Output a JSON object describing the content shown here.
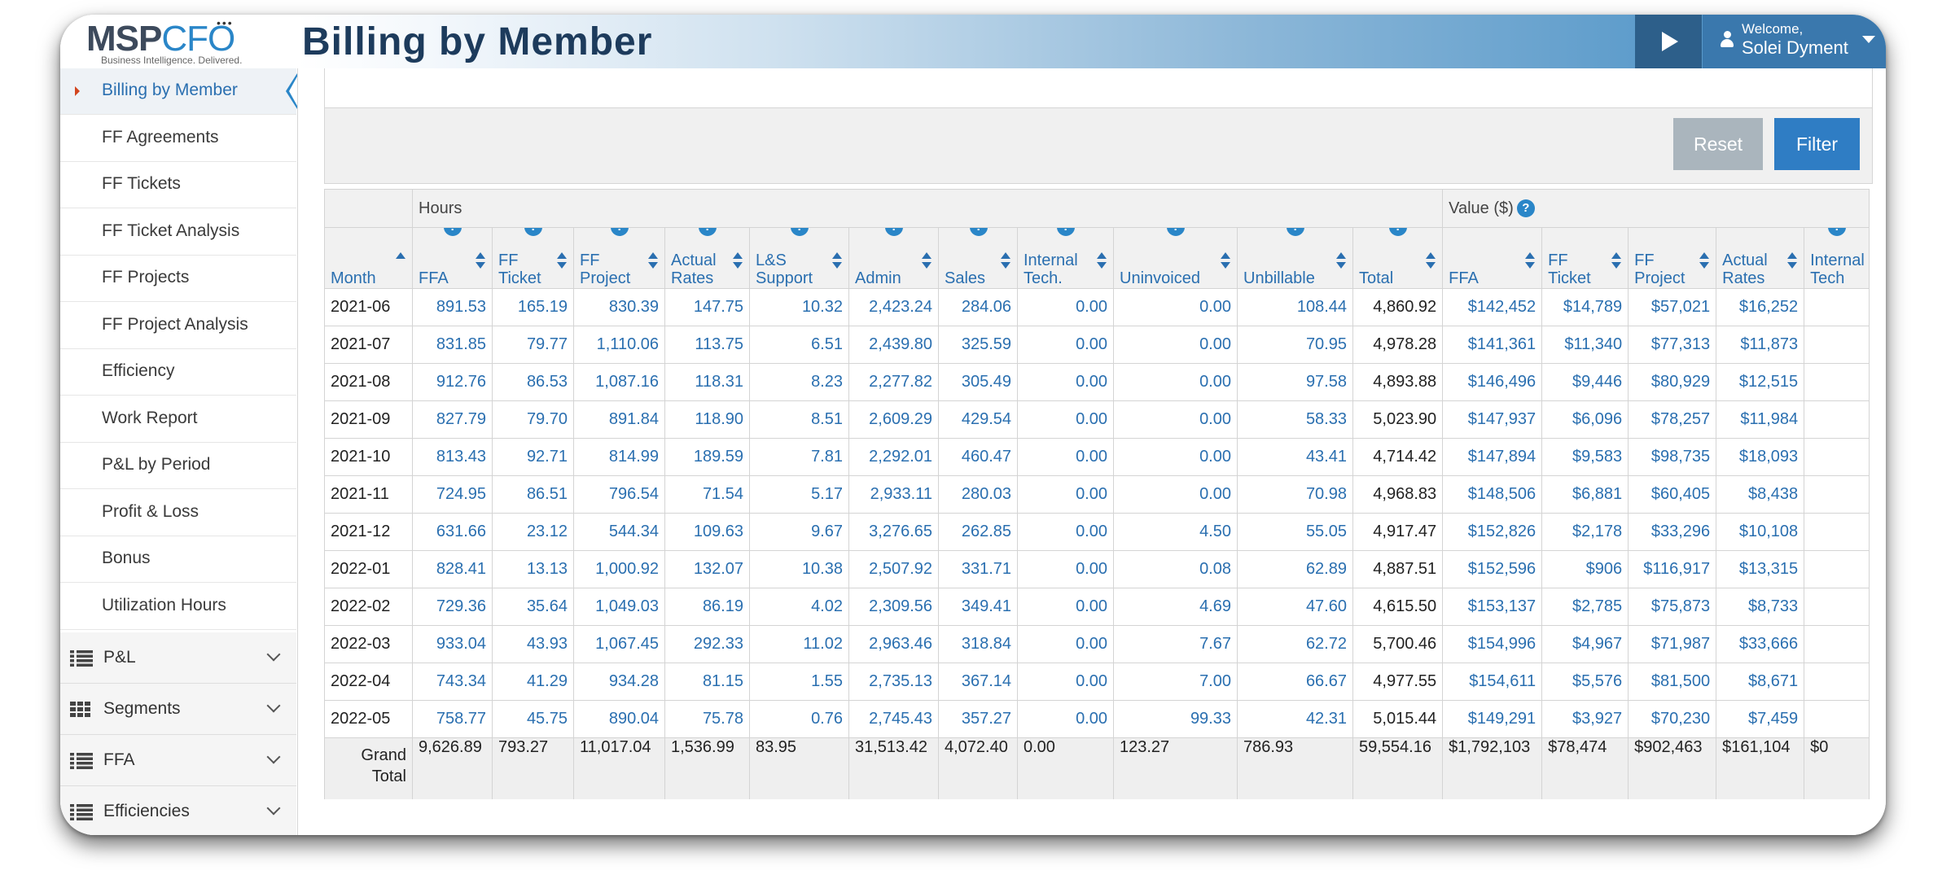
{
  "app": {
    "logo_msp": "MSP",
    "logo_cfo": "CFO",
    "logo_tagline": "Business Intelligence. Delivered.",
    "page_title": "Billing by Member",
    "welcome": "Welcome,",
    "user_name": "Solei Dyment"
  },
  "sidebar": {
    "items": [
      {
        "label": "Billing by Member",
        "active": true
      },
      {
        "label": "FF Agreements"
      },
      {
        "label": "FF Tickets"
      },
      {
        "label": "FF Ticket Analysis"
      },
      {
        "label": "FF Projects"
      },
      {
        "label": "FF Project Analysis"
      },
      {
        "label": "Efficiency"
      },
      {
        "label": "Work Report"
      },
      {
        "label": "P&L by Period"
      },
      {
        "label": "Profit & Loss"
      },
      {
        "label": "Bonus"
      },
      {
        "label": "Utilization Hours"
      }
    ],
    "groups": [
      {
        "label": "P&L",
        "icon": "list-icon"
      },
      {
        "label": "Segments",
        "icon": "grid-icon"
      },
      {
        "label": "FFA",
        "icon": "list-icon"
      },
      {
        "label": "Efficiencies",
        "icon": "list-icon"
      }
    ]
  },
  "filters": {
    "reset_label": "Reset",
    "filter_label": "Filter"
  },
  "table": {
    "group_hours": "Hours",
    "group_value": "Value ($)",
    "help_glyph": "?",
    "columns": [
      {
        "label": "Month"
      },
      {
        "label": "FFA"
      },
      {
        "label": "FF Ticket"
      },
      {
        "label": "FF Project"
      },
      {
        "label": "Actual Rates"
      },
      {
        "label": "L&S Support"
      },
      {
        "label": "Admin"
      },
      {
        "label": "Sales"
      },
      {
        "label": "Internal Tech."
      },
      {
        "label": "Uninvoiced"
      },
      {
        "label": "Unbillable"
      },
      {
        "label": "Total"
      },
      {
        "label": "FFA"
      },
      {
        "label": "FF Ticket"
      },
      {
        "label": "FF Project"
      },
      {
        "label": "Actual Rates"
      },
      {
        "label": "Internal Tech"
      }
    ],
    "rows": [
      [
        "2021-06",
        "891.53",
        "165.19",
        "830.39",
        "147.75",
        "10.32",
        "2,423.24",
        "284.06",
        "0.00",
        "0.00",
        "108.44",
        "4,860.92",
        "$142,452",
        "$14,789",
        "$57,021",
        "$16,252",
        ""
      ],
      [
        "2021-07",
        "831.85",
        "79.77",
        "1,110.06",
        "113.75",
        "6.51",
        "2,439.80",
        "325.59",
        "0.00",
        "0.00",
        "70.95",
        "4,978.28",
        "$141,361",
        "$11,340",
        "$77,313",
        "$11,873",
        ""
      ],
      [
        "2021-08",
        "912.76",
        "86.53",
        "1,087.16",
        "118.31",
        "8.23",
        "2,277.82",
        "305.49",
        "0.00",
        "0.00",
        "97.58",
        "4,893.88",
        "$146,496",
        "$9,446",
        "$80,929",
        "$12,515",
        ""
      ],
      [
        "2021-09",
        "827.79",
        "79.70",
        "891.84",
        "118.90",
        "8.51",
        "2,609.29",
        "429.54",
        "0.00",
        "0.00",
        "58.33",
        "5,023.90",
        "$147,937",
        "$6,096",
        "$78,257",
        "$11,984",
        ""
      ],
      [
        "2021-10",
        "813.43",
        "92.71",
        "814.99",
        "189.59",
        "7.81",
        "2,292.01",
        "460.47",
        "0.00",
        "0.00",
        "43.41",
        "4,714.42",
        "$147,894",
        "$9,583",
        "$98,735",
        "$18,093",
        ""
      ],
      [
        "2021-11",
        "724.95",
        "86.51",
        "796.54",
        "71.54",
        "5.17",
        "2,933.11",
        "280.03",
        "0.00",
        "0.00",
        "70.98",
        "4,968.83",
        "$148,506",
        "$6,881",
        "$60,405",
        "$8,438",
        ""
      ],
      [
        "2021-12",
        "631.66",
        "23.12",
        "544.34",
        "109.63",
        "9.67",
        "3,276.65",
        "262.85",
        "0.00",
        "4.50",
        "55.05",
        "4,917.47",
        "$152,826",
        "$2,178",
        "$33,296",
        "$10,108",
        ""
      ],
      [
        "2022-01",
        "828.41",
        "13.13",
        "1,000.92",
        "132.07",
        "10.38",
        "2,507.92",
        "331.71",
        "0.00",
        "0.08",
        "62.89",
        "4,887.51",
        "$152,596",
        "$906",
        "$116,917",
        "$13,315",
        ""
      ],
      [
        "2022-02",
        "729.36",
        "35.64",
        "1,049.03",
        "86.19",
        "4.02",
        "2,309.56",
        "349.41",
        "0.00",
        "4.69",
        "47.60",
        "4,615.50",
        "$153,137",
        "$2,785",
        "$75,873",
        "$8,733",
        ""
      ],
      [
        "2022-03",
        "933.04",
        "43.93",
        "1,067.45",
        "292.33",
        "11.02",
        "2,963.46",
        "318.84",
        "0.00",
        "7.67",
        "62.72",
        "5,700.46",
        "$154,996",
        "$4,967",
        "$71,987",
        "$33,666",
        ""
      ],
      [
        "2022-04",
        "743.34",
        "41.29",
        "934.28",
        "81.15",
        "1.55",
        "2,735.13",
        "367.14",
        "0.00",
        "7.00",
        "66.67",
        "4,977.55",
        "$154,611",
        "$5,576",
        "$81,500",
        "$8,671",
        ""
      ],
      [
        "2022-05",
        "758.77",
        "45.75",
        "890.04",
        "75.78",
        "0.76",
        "2,745.43",
        "357.27",
        "0.00",
        "99.33",
        "42.31",
        "5,015.44",
        "$149,291",
        "$3,927",
        "$70,230",
        "$7,459",
        ""
      ]
    ],
    "grand_total_label_1": "Grand",
    "grand_total_label_2": "Total",
    "grand_total": [
      "9,626.89",
      "793.27",
      "11,017.04",
      "1,536.99",
      "83.95",
      "31,513.42",
      "4,072.40",
      "0.00",
      "123.27",
      "786.93",
      "59,554.16",
      "$1,792,103",
      "$78,474",
      "$902,463",
      "$161,104",
      "$0"
    ]
  },
  "colors": {
    "accent": "#2a86c8",
    "link": "#2a6fb0",
    "header_dark": "#1d3b5c",
    "filter_button": "#2f7dc4",
    "reset_button": "#aab5bd"
  }
}
